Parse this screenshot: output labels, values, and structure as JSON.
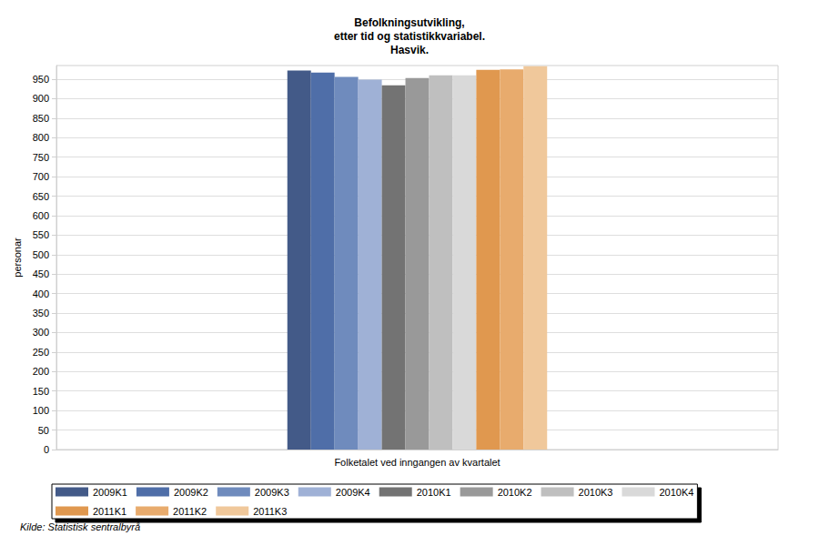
{
  "chart_data": {
    "type": "bar",
    "title": "Befolkningsutvikling,\netter tid og statistikkvariabel.\nHasvik.",
    "ylabel": "personar",
    "source": "Kilde: Statistisk sentralbyrå",
    "categories": [
      "Folketalet ved inngangen av kvartalet"
    ],
    "series": [
      {
        "name": "2009K1",
        "color": "#435a88",
        "values": [
          972
        ]
      },
      {
        "name": "2009K2",
        "color": "#4f6ea8",
        "values": [
          967
        ]
      },
      {
        "name": "2009K3",
        "color": "#6f8bbd",
        "values": [
          956
        ]
      },
      {
        "name": "2009K4",
        "color": "#9fb1d6",
        "values": [
          949
        ]
      },
      {
        "name": "2010K1",
        "color": "#737373",
        "values": [
          934
        ]
      },
      {
        "name": "2010K2",
        "color": "#999999",
        "values": [
          953
        ]
      },
      {
        "name": "2010K3",
        "color": "#bfbfbf",
        "values": [
          960
        ]
      },
      {
        "name": "2010K4",
        "color": "#d9d9d9",
        "values": [
          960
        ]
      },
      {
        "name": "2011K1",
        "color": "#e0984f",
        "values": [
          974
        ]
      },
      {
        "name": "2011K2",
        "color": "#e8ab6d",
        "values": [
          975
        ]
      },
      {
        "name": "2011K3",
        "color": "#f0c89b",
        "values": [
          983
        ]
      }
    ],
    "ylim": [
      0,
      985
    ],
    "yticks": [
      0,
      50,
      100,
      150,
      200,
      250,
      300,
      350,
      400,
      450,
      500,
      550,
      600,
      650,
      700,
      750,
      800,
      850,
      900,
      950
    ],
    "grid": true,
    "legend": "bottom"
  }
}
